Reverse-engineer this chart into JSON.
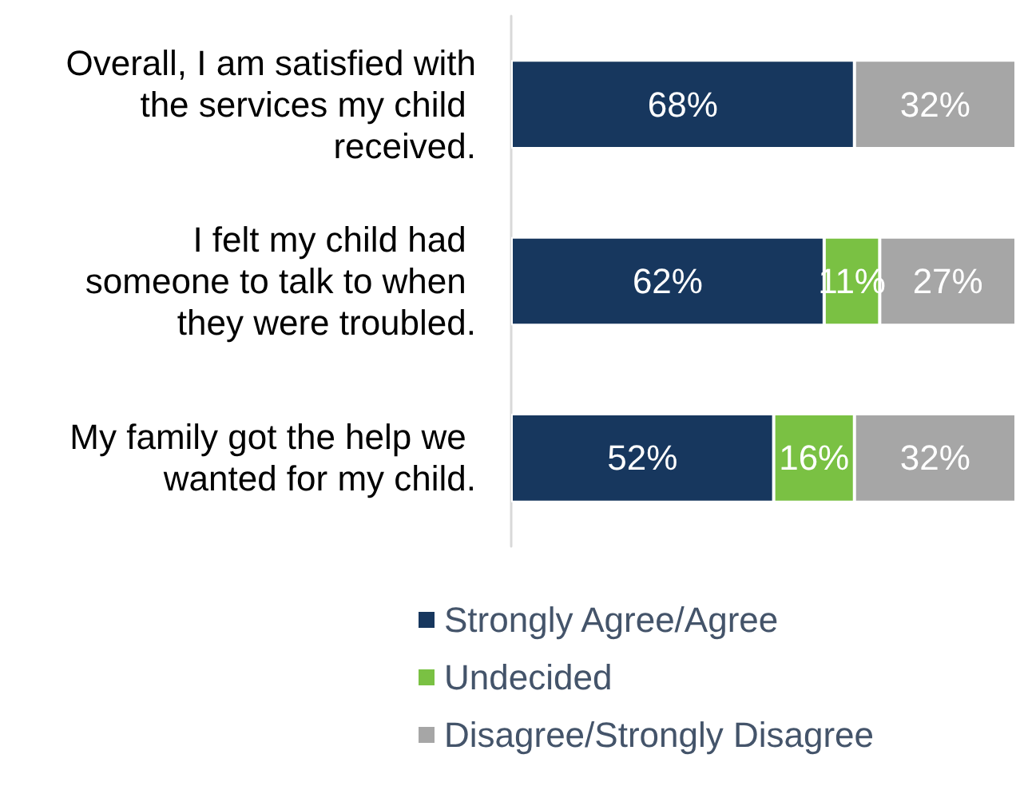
{
  "chart_data": {
    "type": "bar",
    "orientation": "horizontal",
    "stacked": true,
    "categories": [
      "Overall, I am satisfied with the services my child received.",
      "I felt my child had someone to talk to when they were troubled.",
      "My family got the help we wanted for my child."
    ],
    "series": [
      {
        "name": "Strongly Agree/Agree",
        "color": "#17375e",
        "values": [
          68,
          62,
          52
        ],
        "value_labels": [
          "68%",
          "62%",
          "52%"
        ]
      },
      {
        "name": "Undecided",
        "color": "#7ac143",
        "values": [
          null,
          11,
          16
        ],
        "value_labels": [
          null,
          "11%",
          "16%"
        ]
      },
      {
        "name": "Disagree/Strongly Disagree",
        "color": "#a6a6a6",
        "values": [
          32,
          27,
          32
        ],
        "value_labels": [
          "32%",
          "27%",
          "32%"
        ]
      }
    ],
    "legend": "bottom"
  }
}
